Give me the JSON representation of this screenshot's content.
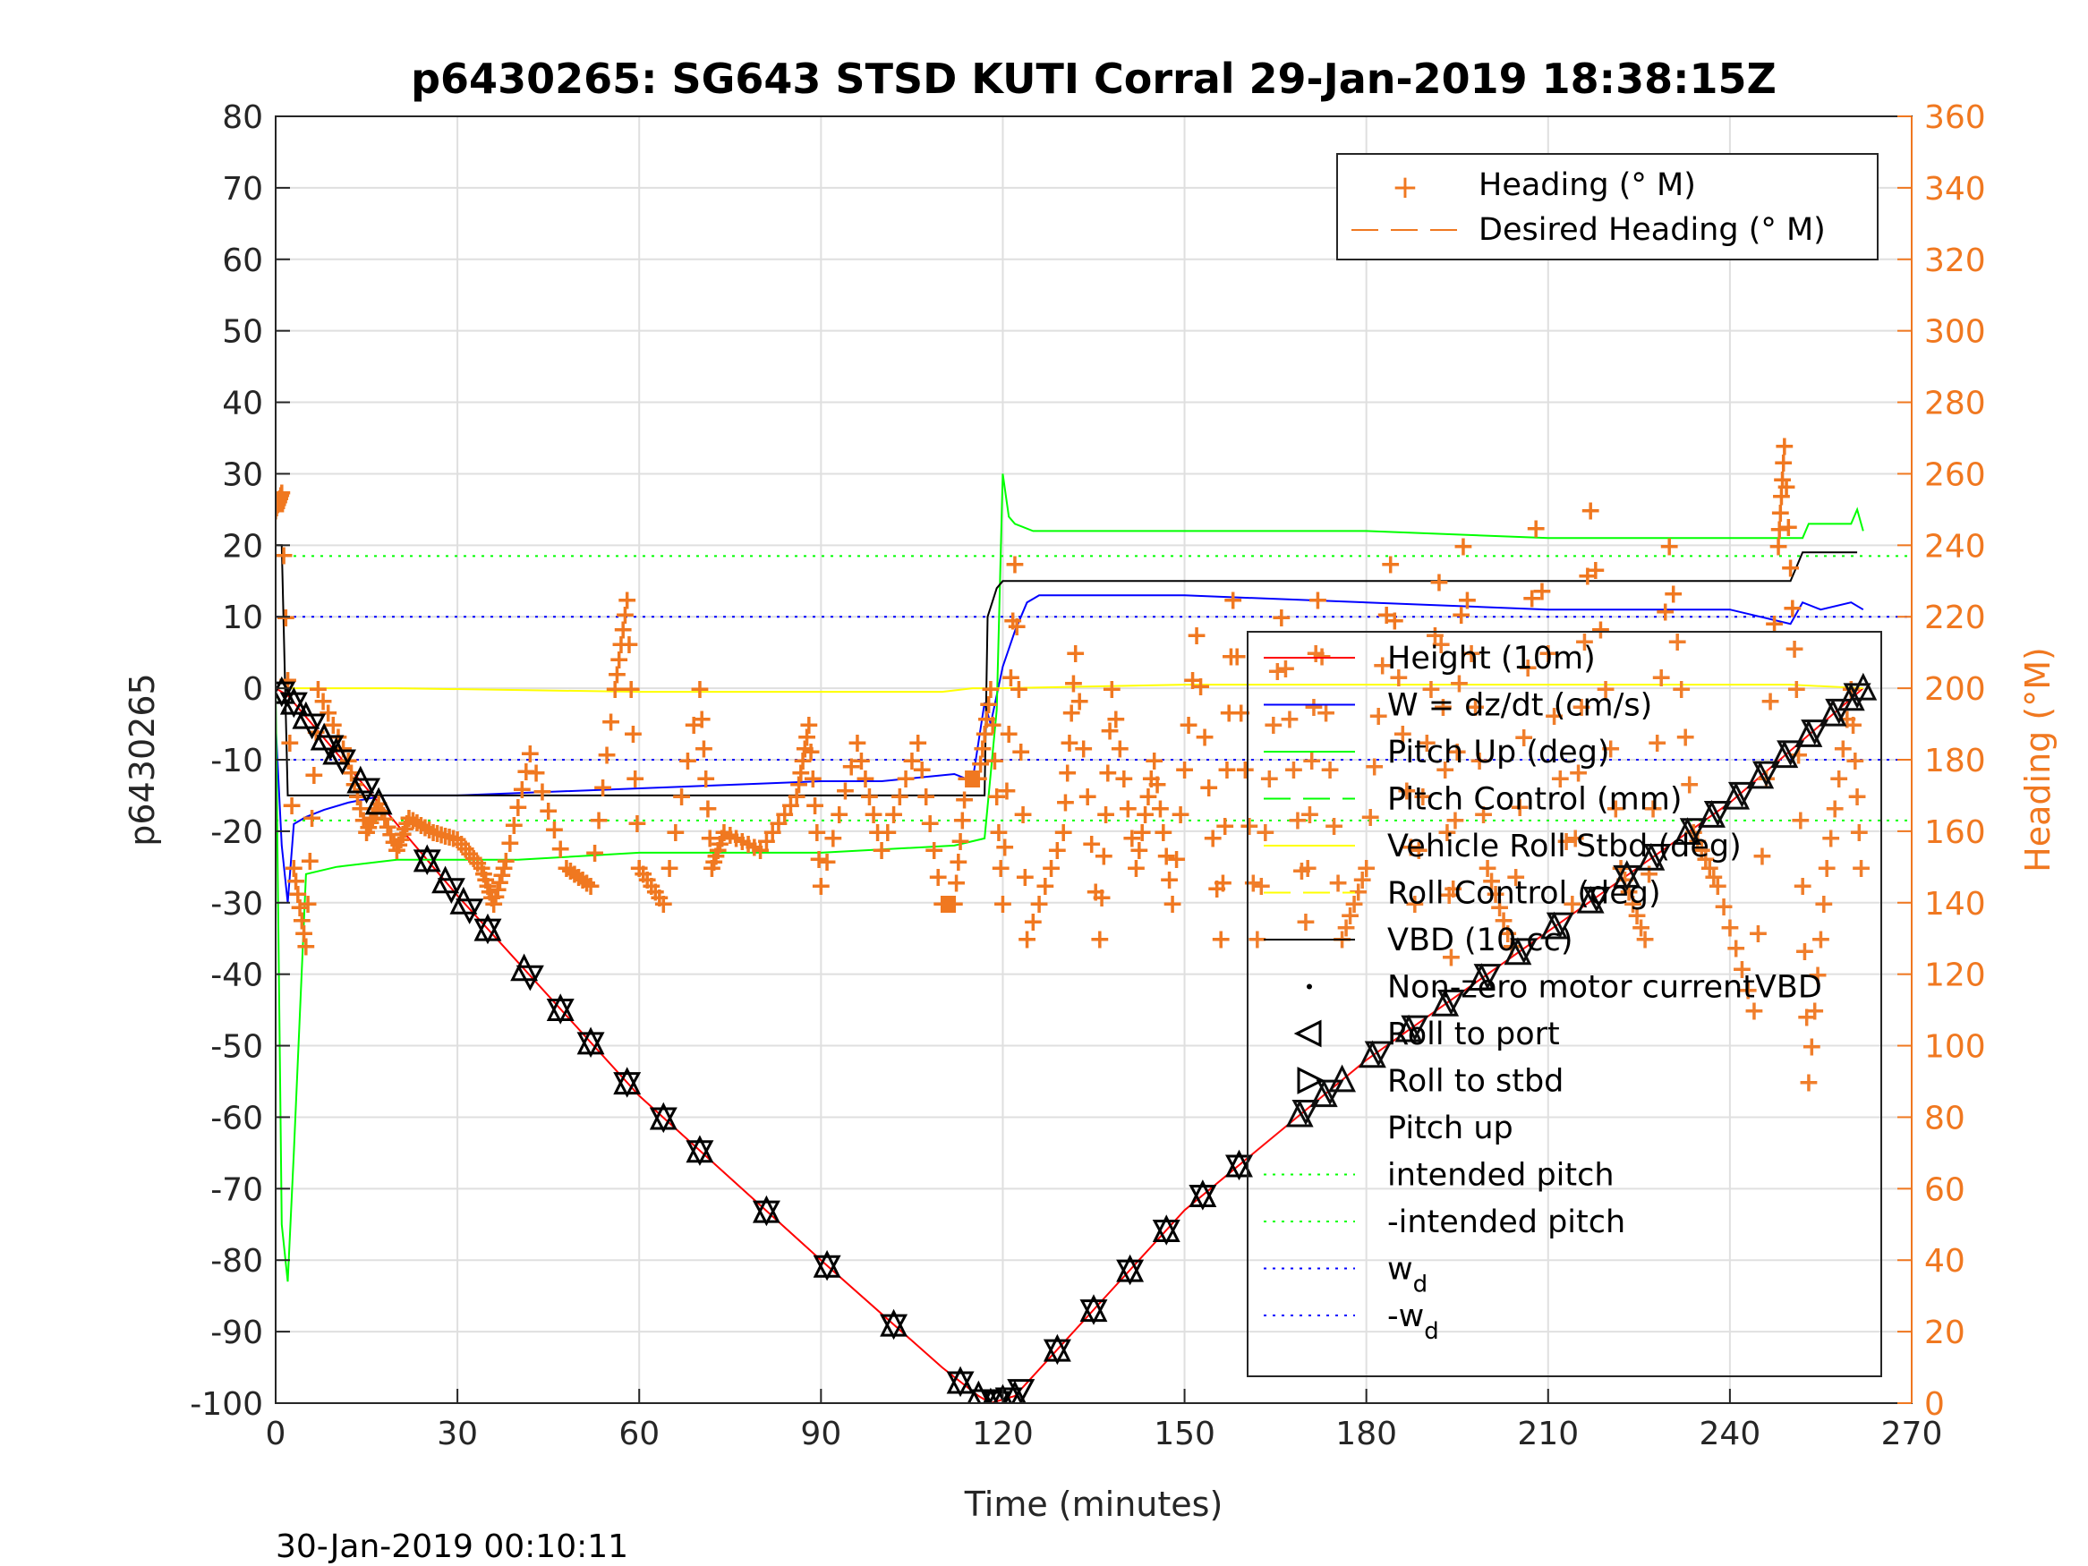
{
  "chart_data": {
    "type": "line",
    "title": "p6430265: SG643 STSD KUTI Corral 29-Jan-2019 18:38:15Z",
    "xlabel": "Time (minutes)",
    "ylabel_left": "p6430265",
    "ylabel_right": "Heading (°M)",
    "timestamp": "30-Jan-2019 00:10:11",
    "xlim": [
      0,
      270
    ],
    "ylim_left": [
      -100,
      80
    ],
    "ylim_right": [
      0,
      360
    ],
    "x_ticks": [
      "0",
      "30",
      "60",
      "90",
      "120",
      "150",
      "180",
      "210",
      "240",
      "270"
    ],
    "y_ticks_left": [
      "80",
      "70",
      "60",
      "50",
      "40",
      "30",
      "20",
      "10",
      "0",
      "-10",
      "-20",
      "-30",
      "-40",
      "-50",
      "-60",
      "-70",
      "-80",
      "-90",
      "-100"
    ],
    "y_ticks_right": [
      "360",
      "340",
      "320",
      "300",
      "280",
      "260",
      "240",
      "220",
      "200",
      "180",
      "160",
      "140",
      "120",
      "100",
      "80",
      "60",
      "40",
      "20",
      "0"
    ],
    "grid": true,
    "colors": {
      "height": "#ff0000",
      "w": "#0000ff",
      "pitch": "#00ff00",
      "roll": "#ffff00",
      "vbd": "#000000",
      "heading": "#f07820"
    },
    "legend_heading": {
      "placement": "top-right",
      "entries": [
        "Heading (° M)",
        "Desired Heading (° M)"
      ]
    },
    "legend_main": {
      "placement": "right",
      "entries": [
        "Height (10m)",
        "W = dz/dt (cm/s)",
        "Pitch Up (deg)",
        "Pitch Control (mm)",
        "Vehicle Roll Stbd (deg)",
        "Roll Control (deg)",
        "VBD (10 cc)",
        "Non-zero motor currentVBD",
        "Roll to port",
        "Roll to stbd",
        "Pitch up",
        "intended pitch",
        "-intended pitch",
        "w",
        "-w"
      ],
      "subscript": "d"
    },
    "reference_lines": {
      "intended_pitch": 18.5,
      "neg_intended_pitch": -18.5,
      "w_d": 10,
      "neg_w_d": -10
    },
    "series": [
      {
        "name": "Height (10m)",
        "axis": "left",
        "x": [
          0,
          2,
          15,
          30,
          60,
          90,
          110,
          116,
          118,
          122,
          150,
          180,
          210,
          240,
          262
        ],
        "y": [
          0,
          -1,
          -14,
          -29,
          -57,
          -80,
          -95,
          -99,
          -100,
          -99,
          -73,
          -52,
          -34,
          -16,
          0
        ]
      },
      {
        "name": "W = dz/dt (cm/s)",
        "axis": "left",
        "x": [
          0,
          1,
          2,
          3,
          5,
          8,
          12,
          18,
          30,
          60,
          90,
          100,
          112,
          115,
          117,
          118,
          120,
          122,
          124,
          126,
          130,
          150,
          180,
          210,
          240,
          250,
          252,
          255,
          260,
          262
        ],
        "y": [
          -5,
          -22,
          -30,
          -19,
          -18,
          -17,
          -16,
          -15,
          -15,
          -14,
          -13,
          -13,
          -12,
          -13,
          -2,
          -5,
          3,
          8,
          12,
          13,
          13,
          13,
          12,
          11,
          11,
          9,
          12,
          11,
          12,
          11
        ]
      },
      {
        "name": "Pitch Up (deg)",
        "axis": "left",
        "x": [
          0,
          1,
          2,
          3,
          5,
          10,
          20,
          40,
          60,
          90,
          112,
          117,
          119,
          120,
          121,
          122,
          125,
          150,
          180,
          210,
          240,
          252,
          253,
          260,
          261,
          262
        ],
        "y": [
          0,
          -75,
          -83,
          -65,
          -26,
          -25,
          -24,
          -24,
          -23,
          -23,
          -22,
          -21,
          -3,
          30,
          24,
          23,
          22,
          22,
          22,
          21,
          21,
          21,
          23,
          23,
          25,
          22
        ]
      },
      {
        "name": "Roll Control (deg)",
        "axis": "left",
        "x": [
          0,
          5,
          20,
          60,
          90,
          110,
          115,
          120,
          150,
          180,
          210,
          250,
          262
        ],
        "y": [
          0,
          0,
          0,
          -0.5,
          -0.5,
          -0.5,
          0,
          0,
          0.5,
          0.5,
          0.5,
          0.5,
          0
        ]
      },
      {
        "name": "VBD (10 cc)",
        "axis": "left",
        "x": [
          0,
          1,
          2,
          117,
          117.5,
          119,
          120,
          121,
          150,
          180,
          250,
          251,
          252,
          261
        ],
        "y": [
          20,
          20,
          -15,
          -15,
          10,
          14,
          15,
          15,
          15,
          15,
          15,
          17,
          19,
          19
        ]
      },
      {
        "name": "Heading (° M)",
        "axis": "right",
        "x": [
          0,
          1,
          3,
          5,
          7,
          12,
          15,
          17,
          20,
          22,
          26,
          30,
          34,
          36,
          38,
          42,
          48,
          52,
          56,
          58,
          60,
          64,
          70,
          72,
          74,
          80,
          86,
          88,
          90,
          96,
          100,
          106,
          110,
          112,
          114,
          116,
          118,
          120,
          122,
          124,
          130,
          132,
          136,
          138,
          142,
          145,
          148,
          152,
          156,
          158,
          162,
          166,
          170,
          172,
          176,
          180,
          184,
          188,
          192,
          194,
          196,
          200,
          204,
          208,
          214,
          217,
          222,
          226,
          230,
          234,
          238,
          244,
          248,
          249,
          251,
          253,
          256,
          260,
          262
        ],
        "y": [
          250,
          255,
          150,
          128,
          200,
          180,
          160,
          168,
          155,
          164,
          160,
          158,
          150,
          140,
          152,
          182,
          150,
          145,
          200,
          225,
          150,
          140,
          200,
          150,
          160,
          155,
          170,
          190,
          145,
          185,
          155,
          185,
          140,
          140,
          175,
          175,
          200,
          140,
          235,
          130,
          160,
          210,
          130,
          200,
          150,
          180,
          140,
          215,
          130,
          225,
          130,
          220,
          135,
          225,
          130,
          150,
          235,
          140,
          230,
          125,
          240,
          150,
          128,
          245,
          140,
          250,
          150,
          130,
          240,
          160,
          145,
          110,
          240,
          268,
          200,
          90,
          150,
          200,
          140
        ]
      }
    ],
    "markers": {
      "roll_to_port_x": [
        1,
        3,
        5,
        8,
        10,
        14,
        17,
        25,
        28,
        31,
        35,
        41,
        47,
        52,
        58,
        64,
        70,
        81,
        91,
        102,
        113,
        116,
        118,
        120,
        122,
        129,
        135,
        141,
        147,
        153,
        159,
        169,
        173,
        176,
        181,
        187,
        193,
        199,
        205,
        211,
        217,
        223,
        227,
        233,
        237,
        241,
        245,
        249,
        253,
        257,
        260,
        262
      ],
      "pitch_up_x": [
        1,
        3,
        6,
        9,
        11,
        15,
        25,
        29,
        32,
        35,
        42,
        47,
        52,
        58,
        64,
        70,
        81,
        91,
        102,
        113,
        117,
        119,
        121,
        123,
        129,
        135,
        141,
        147,
        153,
        159,
        170,
        174,
        182,
        188,
        194,
        200,
        206,
        212,
        218,
        223,
        228,
        234,
        238,
        242,
        246,
        250,
        254,
        258,
        261
      ]
    }
  }
}
